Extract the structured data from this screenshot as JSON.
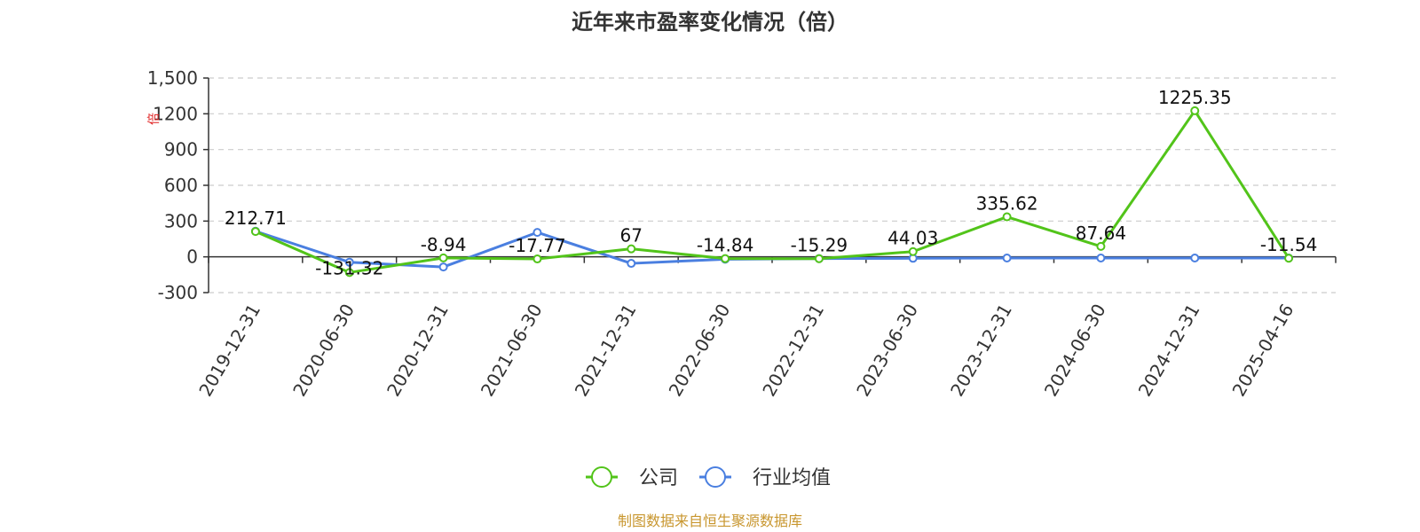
{
  "chart_data": {
    "type": "line",
    "title": "近年来市盈率变化情况（倍）",
    "ylabel": "倍",
    "ylim": [
      -300,
      1500
    ],
    "yticks": [
      -300,
      0,
      300,
      600,
      900,
      1200,
      1500
    ],
    "ytick_labels": [
      "-300",
      "0",
      "300",
      "600",
      "900",
      "1200",
      "1,500"
    ],
    "grid": true,
    "legend_position": "bottom",
    "categories": [
      "2019-12-31",
      "2020-06-30",
      "2020-12-31",
      "2021-06-30",
      "2021-12-31",
      "2022-06-30",
      "2022-12-31",
      "2023-06-30",
      "2023-12-31",
      "2024-06-30",
      "2024-12-31",
      "2025-04-16"
    ],
    "series": [
      {
        "name": "公司",
        "color": "#52c41a",
        "values": [
          212.71,
          -131.32,
          -8.94,
          -17.77,
          67,
          -14.84,
          -15.29,
          44.03,
          335.62,
          87.64,
          1225.35,
          -11.54
        ],
        "labels": [
          "212.71",
          "-131.32",
          "-8.94",
          "-17.77",
          "67",
          "-14.84",
          "-15.29",
          "44.03",
          "335.62",
          "87.64",
          "1225.35",
          "-11.54"
        ]
      },
      {
        "name": "行业均值",
        "color": "#4a7fe0",
        "values": [
          215,
          -45,
          -85,
          205,
          -55,
          -20,
          -15,
          -12,
          -10,
          -10,
          -10,
          -10
        ]
      }
    ],
    "source": "制图数据来自恒生聚源数据库"
  }
}
